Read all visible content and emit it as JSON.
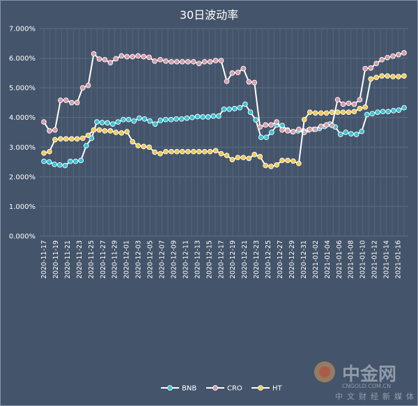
{
  "chart_data": {
    "type": "line",
    "title": "30日波动率",
    "ylim": [
      0,
      0.07
    ],
    "yticks": [
      "0.000%",
      "1.000%",
      "2.000%",
      "3.000%",
      "4.000%",
      "5.000%",
      "6.000%",
      "7.000%"
    ],
    "grid": true,
    "legend_position": "bottom",
    "xtick_labels": [
      "2020-11-17",
      "2020-11-19",
      "2020-11-21",
      "2020-11-23",
      "2020-11-25",
      "2020-11-27",
      "2020-11-29",
      "2020-12-01",
      "2020-12-03",
      "2020-12-05",
      "2020-12-07",
      "2020-12-09",
      "2020-12-11",
      "2020-12-13",
      "2020-12-15",
      "2020-12-17",
      "2020-12-19",
      "2020-12-21",
      "2020-12-23",
      "2020-12-25",
      "2020-12-27",
      "2020-12-29",
      "2020-12-31",
      "2021-01-02",
      "2021-01-04",
      "2021-01-06",
      "2021-01-08",
      "2021-01-10",
      "2021-01-12",
      "2021-01-14",
      "2021-01-16"
    ],
    "x_start": "2020-11-17",
    "x_end": "2021-01-17",
    "series": [
      {
        "name": "BNB",
        "color": "#2ec4d6",
        "values": [
          0.0252,
          0.025,
          0.0242,
          0.024,
          0.0238,
          0.0252,
          0.0252,
          0.0255,
          0.0305,
          0.033,
          0.0385,
          0.0383,
          0.0382,
          0.0378,
          0.0385,
          0.0393,
          0.0393,
          0.0388,
          0.0398,
          0.0395,
          0.0388,
          0.0378,
          0.039,
          0.0393,
          0.0393,
          0.0395,
          0.0395,
          0.0398,
          0.04,
          0.0403,
          0.0402,
          0.0402,
          0.0405,
          0.0405,
          0.0428,
          0.0428,
          0.043,
          0.0433,
          0.0445,
          0.0418,
          0.0392,
          0.0333,
          0.0333,
          0.035,
          0.0375,
          0.0373,
          0.0358,
          0.0352,
          0.0355,
          0.0355,
          0.0358,
          0.036,
          0.0363,
          0.037,
          0.0378,
          0.0368,
          0.0343,
          0.035,
          0.0345,
          0.0343,
          0.0353,
          0.041,
          0.0413,
          0.0418,
          0.042,
          0.042,
          0.0423,
          0.0425,
          0.0433
        ]
      },
      {
        "name": "CRO",
        "color": "#d99aa8",
        "values": [
          0.0385,
          0.0355,
          0.0358,
          0.0458,
          0.0458,
          0.045,
          0.045,
          0.05,
          0.0508,
          0.0615,
          0.0597,
          0.0595,
          0.0585,
          0.0598,
          0.0608,
          0.0605,
          0.0605,
          0.0608,
          0.0605,
          0.0603,
          0.059,
          0.0595,
          0.059,
          0.0588,
          0.0588,
          0.0588,
          0.0588,
          0.0588,
          0.0582,
          0.0588,
          0.0588,
          0.0592,
          0.0592,
          0.0522,
          0.055,
          0.0552,
          0.0565,
          0.052,
          0.0518,
          0.0368,
          0.0375,
          0.0375,
          0.0385,
          0.0358,
          0.0355,
          0.0352,
          0.036,
          0.035,
          0.036,
          0.036,
          0.037,
          0.0375,
          0.0373,
          0.046,
          0.0445,
          0.0448,
          0.0445,
          0.046,
          0.0565,
          0.0567,
          0.0582,
          0.0595,
          0.0602,
          0.0607,
          0.0612,
          0.0618
        ]
      },
      {
        "name": "HT",
        "color": "#f2c94c",
        "values": [
          0.028,
          0.0285,
          0.0325,
          0.0328,
          0.0328,
          0.0328,
          0.0328,
          0.033,
          0.034,
          0.0358,
          0.0358,
          0.0355,
          0.0355,
          0.035,
          0.0348,
          0.0352,
          0.0318,
          0.0305,
          0.0302,
          0.03,
          0.0283,
          0.0278,
          0.0285,
          0.0285,
          0.0285,
          0.0285,
          0.0285,
          0.0285,
          0.0285,
          0.0285,
          0.0285,
          0.0288,
          0.0278,
          0.0272,
          0.0258,
          0.0265,
          0.0265,
          0.0262,
          0.0275,
          0.0268,
          0.0238,
          0.0235,
          0.024,
          0.0255,
          0.0255,
          0.0253,
          0.0245,
          0.0393,
          0.0418,
          0.0415,
          0.0415,
          0.0415,
          0.0418,
          0.0418,
          0.0418,
          0.0418,
          0.042,
          0.043,
          0.0435,
          0.053,
          0.0535,
          0.054,
          0.054,
          0.0538,
          0.0538,
          0.054
        ]
      }
    ]
  },
  "watermark": {
    "brand": "中金网",
    "domain": "CNGOLD.COM.CN",
    "tagline": "中文财经新媒体"
  }
}
